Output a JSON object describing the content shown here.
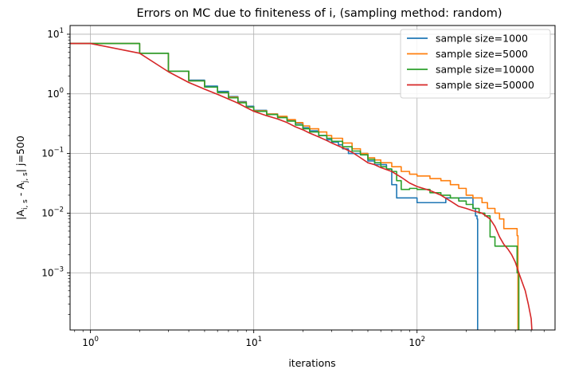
{
  "chart_data": {
    "type": "line",
    "title": "Errors on MC due to finiteness of i, (sampling method: random)",
    "xlabel": "iterations",
    "ylabel": "|A_{i,s} - A_{j,s}| j=500",
    "x_scale": "log",
    "y_scale": "log",
    "xlim": [
      0.75,
      700
    ],
    "ylim": [
      0.00011,
      14
    ],
    "x_ticks": [
      {
        "value": 1,
        "label": "10",
        "exp": "0"
      },
      {
        "value": 10,
        "label": "10",
        "exp": "1"
      },
      {
        "value": 100,
        "label": "10",
        "exp": "2"
      }
    ],
    "y_ticks": [
      {
        "value": 0.001,
        "label": "10",
        "exp": "−3"
      },
      {
        "value": 0.01,
        "label": "10",
        "exp": "−2"
      },
      {
        "value": 0.1,
        "label": "10",
        "exp": "−1"
      },
      {
        "value": 1,
        "label": "10",
        "exp": "0"
      },
      {
        "value": 10,
        "label": "10",
        "exp": "1"
      }
    ],
    "grid": true,
    "legend_position": "top-right",
    "series": [
      {
        "name": "sample size=1000",
        "color": "#1f77b4",
        "step": true,
        "points": [
          [
            0.75,
            7.0
          ],
          [
            1,
            7.0
          ],
          [
            2,
            4.8
          ],
          [
            3,
            2.4
          ],
          [
            4,
            1.7
          ],
          [
            5,
            1.35
          ],
          [
            6,
            1.1
          ],
          [
            7,
            0.9
          ],
          [
            8,
            0.74
          ],
          [
            9,
            0.62
          ],
          [
            10,
            0.53
          ],
          [
            12,
            0.46
          ],
          [
            14,
            0.41
          ],
          [
            16,
            0.36
          ],
          [
            18,
            0.32
          ],
          [
            20,
            0.27
          ],
          [
            22,
            0.24
          ],
          [
            25,
            0.2
          ],
          [
            28,
            0.17
          ],
          [
            30,
            0.155
          ],
          [
            33,
            0.14
          ],
          [
            35,
            0.12
          ],
          [
            38,
            0.1
          ],
          [
            45,
            0.1
          ],
          [
            50,
            0.075
          ],
          [
            55,
            0.065
          ],
          [
            62,
            0.065
          ],
          [
            65,
            0.055
          ],
          [
            70,
            0.03
          ],
          [
            75,
            0.018
          ],
          [
            85,
            0.018
          ],
          [
            98,
            0.018
          ],
          [
            100,
            0.015
          ],
          [
            130,
            0.015
          ],
          [
            150,
            0.018
          ],
          [
            200,
            0.018
          ],
          [
            220,
            0.012
          ],
          [
            228,
            0.009
          ],
          [
            233,
            0.008
          ],
          [
            235,
            0.00011
          ]
        ]
      },
      {
        "name": "sample size=5000",
        "color": "#ff7f0e",
        "step": true,
        "points": [
          [
            0.75,
            7.0
          ],
          [
            1,
            7.0
          ],
          [
            2,
            4.8
          ],
          [
            3,
            2.4
          ],
          [
            4,
            1.65
          ],
          [
            5,
            1.3
          ],
          [
            6,
            1.05
          ],
          [
            7,
            0.88
          ],
          [
            8,
            0.72
          ],
          [
            9,
            0.6
          ],
          [
            10,
            0.52
          ],
          [
            12,
            0.46
          ],
          [
            14,
            0.42
          ],
          [
            16,
            0.37
          ],
          [
            18,
            0.33
          ],
          [
            20,
            0.29
          ],
          [
            22,
            0.26
          ],
          [
            25,
            0.23
          ],
          [
            28,
            0.2
          ],
          [
            30,
            0.18
          ],
          [
            35,
            0.15
          ],
          [
            40,
            0.12
          ],
          [
            45,
            0.1
          ],
          [
            50,
            0.085
          ],
          [
            55,
            0.078
          ],
          [
            60,
            0.07
          ],
          [
            70,
            0.06
          ],
          [
            80,
            0.05
          ],
          [
            90,
            0.045
          ],
          [
            100,
            0.042
          ],
          [
            120,
            0.038
          ],
          [
            140,
            0.035
          ],
          [
            160,
            0.03
          ],
          [
            180,
            0.026
          ],
          [
            200,
            0.02
          ],
          [
            220,
            0.018
          ],
          [
            250,
            0.015
          ],
          [
            270,
            0.012
          ],
          [
            300,
            0.01
          ],
          [
            320,
            0.008
          ],
          [
            340,
            0.0055
          ],
          [
            380,
            0.0055
          ],
          [
            400,
            0.0055
          ],
          [
            410,
            0.0042
          ],
          [
            415,
            0.00011
          ]
        ]
      },
      {
        "name": "sample size=10000",
        "color": "#2ca02c",
        "step": true,
        "points": [
          [
            0.75,
            7.0
          ],
          [
            1,
            7.0
          ],
          [
            2,
            4.8
          ],
          [
            3,
            2.4
          ],
          [
            4,
            1.65
          ],
          [
            5,
            1.3
          ],
          [
            6,
            1.05
          ],
          [
            7,
            0.86
          ],
          [
            8,
            0.71
          ],
          [
            9,
            0.6
          ],
          [
            10,
            0.51
          ],
          [
            12,
            0.45
          ],
          [
            14,
            0.4
          ],
          [
            16,
            0.35
          ],
          [
            18,
            0.3
          ],
          [
            20,
            0.26
          ],
          [
            22,
            0.23
          ],
          [
            25,
            0.2
          ],
          [
            28,
            0.18
          ],
          [
            30,
            0.16
          ],
          [
            35,
            0.13
          ],
          [
            40,
            0.11
          ],
          [
            45,
            0.095
          ],
          [
            50,
            0.08
          ],
          [
            55,
            0.07
          ],
          [
            60,
            0.06
          ],
          [
            65,
            0.055
          ],
          [
            70,
            0.05
          ],
          [
            75,
            0.035
          ],
          [
            80,
            0.025
          ],
          [
            90,
            0.026
          ],
          [
            100,
            0.025
          ],
          [
            120,
            0.022
          ],
          [
            140,
            0.02
          ],
          [
            160,
            0.018
          ],
          [
            180,
            0.016
          ],
          [
            200,
            0.014
          ],
          [
            220,
            0.012
          ],
          [
            240,
            0.01
          ],
          [
            260,
            0.009
          ],
          [
            280,
            0.004
          ],
          [
            300,
            0.0028
          ],
          [
            350,
            0.0028
          ],
          [
            400,
            0.0028
          ],
          [
            410,
            0.001
          ],
          [
            420,
            0.00011
          ]
        ]
      },
      {
        "name": "sample size=50000",
        "color": "#d62728",
        "step": false,
        "points": [
          [
            0.75,
            7.0
          ],
          [
            1,
            7.0
          ],
          [
            2,
            4.8
          ],
          [
            3,
            2.35
          ],
          [
            4,
            1.55
          ],
          [
            5,
            1.2
          ],
          [
            6,
            0.98
          ],
          [
            7,
            0.82
          ],
          [
            8,
            0.7
          ],
          [
            9,
            0.59
          ],
          [
            10,
            0.51
          ],
          [
            12,
            0.43
          ],
          [
            14,
            0.38
          ],
          [
            16,
            0.33
          ],
          [
            18,
            0.28
          ],
          [
            20,
            0.25
          ],
          [
            22,
            0.22
          ],
          [
            25,
            0.19
          ],
          [
            28,
            0.165
          ],
          [
            30,
            0.15
          ],
          [
            35,
            0.125
          ],
          [
            40,
            0.105
          ],
          [
            45,
            0.085
          ],
          [
            50,
            0.07
          ],
          [
            55,
            0.065
          ],
          [
            60,
            0.058
          ],
          [
            70,
            0.05
          ],
          [
            80,
            0.04
          ],
          [
            90,
            0.032
          ],
          [
            100,
            0.028
          ],
          [
            120,
            0.024
          ],
          [
            140,
            0.02
          ],
          [
            160,
            0.016
          ],
          [
            180,
            0.013
          ],
          [
            200,
            0.012
          ],
          [
            220,
            0.011
          ],
          [
            250,
            0.01
          ],
          [
            280,
            0.008
          ],
          [
            300,
            0.006
          ],
          [
            320,
            0.004
          ],
          [
            340,
            0.003
          ],
          [
            360,
            0.0025
          ],
          [
            380,
            0.002
          ],
          [
            400,
            0.0015
          ],
          [
            420,
            0.001
          ],
          [
            440,
            0.0007
          ],
          [
            460,
            0.0005
          ],
          [
            480,
            0.0003
          ],
          [
            500,
            0.00017
          ],
          [
            505,
            0.00011
          ]
        ]
      }
    ]
  }
}
